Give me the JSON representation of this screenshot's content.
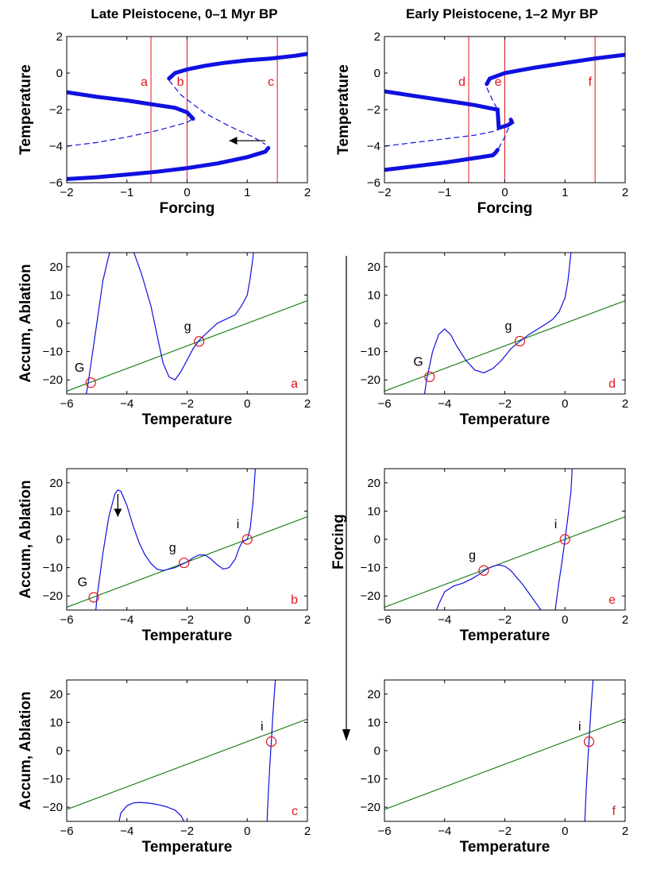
{
  "titles": {
    "left": "Late Pleistocene, 0–1 Myr BP",
    "right": "Early Pleistocene, 1–2 Myr BP"
  },
  "forcing_arrow_label": "Forcing",
  "colors": {
    "stable": "#1010e0",
    "line": "#1a801a",
    "marker": "#e0141e",
    "text_red": "#e0141e"
  },
  "chart_data": [
    {
      "id": "bif-left",
      "type": "line",
      "title": "Late Pleistocene, 0–1 Myr BP",
      "xlabel": "Forcing",
      "ylabel": "Temperature",
      "xlim": [
        -2,
        2
      ],
      "ylim": [
        -6,
        2
      ],
      "xticks": [
        -2,
        -1,
        0,
        1,
        2
      ],
      "yticks": [
        -6,
        -4,
        -2,
        0,
        2
      ],
      "vlines": [
        {
          "x": -0.6,
          "label": "a"
        },
        {
          "x": 0,
          "label": "b"
        },
        {
          "x": 1.5,
          "label": "c"
        }
      ],
      "series": [
        {
          "style": "stable",
          "x": [
            -0.3,
            -0.2,
            0,
            0.3,
            0.6,
            1,
            1.4,
            1.8,
            2
          ],
          "y": [
            -0.3,
            0,
            0.2,
            0.4,
            0.55,
            0.7,
            0.8,
            0.95,
            1.05
          ]
        },
        {
          "style": "stable",
          "x": [
            -2,
            -1.5,
            -1,
            -0.5,
            -0.2,
            0,
            0.1
          ],
          "y": [
            -1.05,
            -1.3,
            -1.5,
            -1.75,
            -1.9,
            -2.15,
            -2.5
          ]
        },
        {
          "style": "unstable",
          "x": [
            -0.3,
            -0.1,
            0.3,
            0.7,
            1.1,
            1.3
          ],
          "y": [
            -0.4,
            -1.2,
            -2.2,
            -2.9,
            -3.5,
            -3.9
          ]
        },
        {
          "style": "unstable",
          "x": [
            -2,
            -1.5,
            -1,
            -0.5,
            0,
            0.1
          ],
          "y": [
            -4,
            -3.8,
            -3.5,
            -3.15,
            -2.7,
            -2.5
          ]
        },
        {
          "style": "stable",
          "x": [
            -2,
            -1.5,
            -1,
            -0.5,
            0,
            0.5,
            1,
            1.3,
            1.35
          ],
          "y": [
            -5.8,
            -5.7,
            -5.55,
            -5.4,
            -5.2,
            -4.95,
            -4.6,
            -4.3,
            -4.1
          ]
        }
      ],
      "arrows": [
        {
          "from": [
            1.3,
            -3.7
          ],
          "to": [
            0.7,
            -3.7
          ]
        }
      ]
    },
    {
      "id": "bif-right",
      "type": "line",
      "title": "Early Pleistocene, 1–2 Myr BP",
      "xlabel": "Forcing",
      "ylabel": "Temperature",
      "xlim": [
        -2,
        2
      ],
      "ylim": [
        -6,
        2
      ],
      "xticks": [
        -2,
        -1,
        0,
        1,
        2
      ],
      "yticks": [
        -6,
        -4,
        -2,
        0,
        2
      ],
      "vlines": [
        {
          "x": -0.6,
          "label": "d"
        },
        {
          "x": 0,
          "label": "e"
        },
        {
          "x": 1.5,
          "label": "f"
        }
      ],
      "series": [
        {
          "style": "stable",
          "x": [
            -0.3,
            -0.25,
            0,
            0.5,
            1,
            1.5,
            2
          ],
          "y": [
            -0.6,
            -0.3,
            0,
            0.3,
            0.55,
            0.8,
            1.0
          ]
        },
        {
          "style": "stable",
          "x": [
            -2,
            -1.5,
            -1,
            -0.5,
            -0.2,
            -0.12,
            -0.1,
            0.05,
            0.12,
            0.1
          ],
          "y": [
            -1.0,
            -1.25,
            -1.5,
            -1.75,
            -1.95,
            -2.0,
            -3.0,
            -2.85,
            -2.7,
            -2.55
          ]
        },
        {
          "style": "unstable",
          "x": [
            -0.3,
            -0.2,
            -0.12
          ],
          "y": [
            -0.8,
            -1.5,
            -2.0
          ]
        },
        {
          "style": "unstable",
          "x": [
            -2,
            -1.5,
            -1,
            -0.5,
            -0.2,
            -0.1
          ],
          "y": [
            -4,
            -3.8,
            -3.6,
            -3.4,
            -3.2,
            -3.1
          ]
        },
        {
          "style": "unstable",
          "x": [
            0.12,
            0,
            -0.1
          ],
          "y": [
            -2.55,
            -3.5,
            -4.1
          ]
        },
        {
          "style": "stable",
          "x": [
            -2,
            -1.5,
            -1,
            -0.5,
            -0.2,
            -0.15,
            -0.12
          ],
          "y": [
            -5.3,
            -5.1,
            -4.9,
            -4.65,
            -4.5,
            -4.35,
            -4.2
          ]
        }
      ],
      "arrows": []
    },
    {
      "id": "a",
      "type": "line",
      "label": "a",
      "xlabel": "Temperature",
      "ylabel": "Accum, Ablation",
      "xlim": [
        -6,
        2
      ],
      "ylim": [
        -25,
        25
      ],
      "xticks": [
        -6,
        -4,
        -2,
        0,
        2
      ],
      "yticks": [
        -20,
        -10,
        0,
        10,
        20
      ],
      "line": {
        "slope": 4,
        "intercept": 0
      },
      "curve_x": [
        -5.6,
        -5.3,
        -5.0,
        -4.8,
        -4.6,
        -4.4,
        -4.2,
        -4.0,
        -3.8,
        -3.5,
        -3.2,
        -3.0,
        -2.8,
        -2.6,
        -2.4,
        -2.2,
        -2.0,
        -1.8,
        -1.6,
        -1.4,
        -1.2,
        -1.0,
        -0.8,
        -0.6,
        -0.4,
        -0.2,
        0,
        0.1,
        0.2,
        0.3
      ],
      "curve_y": [
        -40,
        -22,
        0,
        15,
        24,
        30,
        32,
        30,
        26,
        17,
        6,
        -4,
        -14,
        -19,
        -20,
        -17,
        -13,
        -9,
        -6,
        -4,
        -2,
        0,
        1,
        2,
        3,
        6,
        10,
        16,
        24,
        35
      ],
      "points": [
        {
          "x": -5.2,
          "y": -21,
          "label": "G"
        },
        {
          "x": -1.6,
          "y": -6.4,
          "label": "g"
        }
      ]
    },
    {
      "id": "d",
      "type": "line",
      "label": "d",
      "xlabel": "Temperature",
      "ylabel": "",
      "xlim": [
        -6,
        2
      ],
      "ylim": [
        -25,
        25
      ],
      "xticks": [
        -6,
        -4,
        -2,
        0,
        2
      ],
      "yticks": [
        -20,
        -10,
        0,
        10,
        20
      ],
      "line": {
        "slope": 4,
        "intercept": 0
      },
      "curve_x": [
        -4.8,
        -4.6,
        -4.4,
        -4.2,
        -4.0,
        -3.8,
        -3.6,
        -3.3,
        -3.0,
        -2.7,
        -2.4,
        -2.1,
        -1.8,
        -1.5,
        -1.2,
        -0.9,
        -0.6,
        -0.4,
        -0.2,
        0,
        0.1,
        0.2
      ],
      "curve_y": [
        -35,
        -20,
        -10,
        -4,
        -2,
        -4,
        -8,
        -13,
        -16.5,
        -17.5,
        -16,
        -13,
        -9,
        -6.4,
        -4,
        -2,
        0,
        1.5,
        4,
        9,
        15,
        25
      ],
      "points": [
        {
          "x": -4.5,
          "y": -18.9,
          "label": "G"
        },
        {
          "x": -1.5,
          "y": -6.3,
          "label": "g"
        }
      ]
    },
    {
      "id": "b",
      "type": "line",
      "label": "b",
      "xlabel": "Temperature",
      "ylabel": "Accum, Ablation",
      "xlim": [
        -6,
        2
      ],
      "ylim": [
        -25,
        25
      ],
      "xticks": [
        -6,
        -4,
        -2,
        0,
        2
      ],
      "yticks": [
        -20,
        -10,
        0,
        10,
        20
      ],
      "line": {
        "slope": 4,
        "intercept": 0
      },
      "curve_x": [
        -5.15,
        -5.0,
        -4.8,
        -4.6,
        -4.4,
        -4.3,
        -4.2,
        -4.0,
        -3.8,
        -3.6,
        -3.4,
        -3.2,
        -3.0,
        -2.8,
        -2.6,
        -2.4,
        -2.2,
        -2.0,
        -1.8,
        -1.6,
        -1.4,
        -1.2,
        -1.0,
        -0.8,
        -0.6,
        -0.4,
        -0.3,
        -0.2,
        -0.1,
        0,
        0.1,
        0.2,
        0.3
      ],
      "curve_y": [
        -40,
        -21,
        -5,
        8,
        16,
        17.5,
        17,
        12,
        5,
        -1,
        -5.5,
        -8.5,
        -10.5,
        -11,
        -10.5,
        -10,
        -9,
        -8,
        -6.5,
        -5.5,
        -5.5,
        -7,
        -9,
        -10.5,
        -10,
        -7,
        -4,
        -1.5,
        -0.5,
        0,
        4,
        14,
        30
      ],
      "points": [
        {
          "x": -5.1,
          "y": -20.5,
          "label": "G"
        },
        {
          "x": -2.1,
          "y": -8.3,
          "label": "g"
        },
        {
          "x": 0,
          "y": 0,
          "label": "i"
        }
      ],
      "arrows": [
        {
          "from": [
            -4.3,
            16
          ],
          "to": [
            -4.3,
            8
          ]
        }
      ]
    },
    {
      "id": "e",
      "type": "line",
      "label": "e",
      "xlabel": "Temperature",
      "ylabel": "",
      "xlim": [
        -6,
        2
      ],
      "ylim": [
        -25,
        25
      ],
      "xticks": [
        -6,
        -4,
        -2,
        0,
        2
      ],
      "yticks": [
        -20,
        -10,
        0,
        10,
        20
      ],
      "line": {
        "slope": 4,
        "intercept": 0
      },
      "curve_x": [
        -4.3,
        -4.2,
        -4.0,
        -3.7,
        -3.4,
        -3.1,
        -2.8,
        -2.6,
        -2.4,
        -2.2,
        -2.0,
        -1.8,
        -1.6,
        -1.4,
        -1.2,
        -1.0,
        -0.8,
        -0.7
      ],
      "curve_y": [
        -26,
        -23,
        -18.5,
        -16.5,
        -15.5,
        -14,
        -12,
        -10.5,
        -9.5,
        -9,
        -9.5,
        -11,
        -13.5,
        -16,
        -19,
        -22,
        -25,
        -27
      ],
      "curve2_x": [
        -0.35,
        -0.2,
        -0.1,
        0,
        0.1,
        0.2,
        0.25
      ],
      "curve2_y": [
        -27,
        -15,
        -8,
        0,
        8,
        17,
        27
      ],
      "points": [
        {
          "x": -2.7,
          "y": -11,
          "label": "g"
        },
        {
          "x": 0,
          "y": 0,
          "label": "i"
        }
      ]
    },
    {
      "id": "c",
      "type": "line",
      "label": "c",
      "xlabel": "Temperature",
      "ylabel": "Accum, Ablation",
      "xlim": [
        -6,
        2
      ],
      "ylim": [
        -25,
        25
      ],
      "xticks": [
        -6,
        -4,
        -2,
        0,
        2
      ],
      "yticks": [
        -20,
        -10,
        0,
        10,
        20
      ],
      "line": {
        "slope": 4,
        "intercept": 3.2
      },
      "curve_x": [
        -4.3,
        -4.2,
        -4.0,
        -3.8,
        -3.6,
        -3.3,
        -3.0,
        -2.7,
        -2.4,
        -2.2,
        -2.1,
        -2.05
      ],
      "curve_y": [
        -27,
        -22,
        -19.5,
        -18.5,
        -18.3,
        -18.5,
        -19,
        -19.8,
        -21,
        -23,
        -25,
        -27
      ],
      "curve2_x": [
        0.65,
        0.7,
        0.75,
        0.8,
        0.85,
        0.9,
        0.95
      ],
      "curve2_y": [
        -27,
        -15,
        -5,
        3.2,
        12,
        20,
        27
      ],
      "points": [
        {
          "x": 0.8,
          "y": 3.2,
          "label": "i"
        }
      ]
    },
    {
      "id": "f",
      "type": "line",
      "label": "f",
      "xlabel": "Temperature",
      "ylabel": "",
      "xlim": [
        -6,
        2
      ],
      "ylim": [
        -25,
        25
      ],
      "xticks": [
        -6,
        -4,
        -2,
        0,
        2
      ],
      "yticks": [
        -20,
        -10,
        0,
        10,
        20
      ],
      "line": {
        "slope": 4,
        "intercept": 3.2
      },
      "curve2_x": [
        0.65,
        0.7,
        0.75,
        0.8,
        0.85,
        0.9,
        0.95
      ],
      "curve2_y": [
        -27,
        -15,
        -5,
        3.2,
        12,
        20,
        27
      ],
      "points": [
        {
          "x": 0.8,
          "y": 3.2,
          "label": "i"
        }
      ]
    }
  ]
}
